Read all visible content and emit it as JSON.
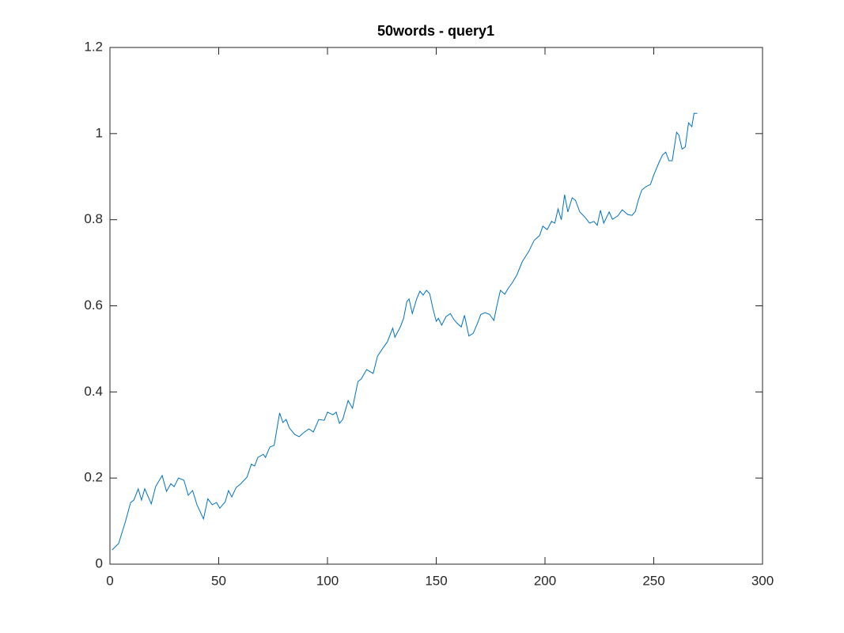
{
  "chart_data": {
    "type": "line",
    "title": "50words - query1",
    "x": [
      1,
      4,
      7,
      9.5,
      11,
      13,
      14.5,
      16,
      19,
      21,
      24,
      26,
      28,
      29.5,
      31.5,
      34,
      36,
      38,
      40,
      43,
      45,
      47,
      49,
      50.5,
      53,
      54.5,
      56,
      58,
      60,
      63,
      65,
      66.5,
      68,
      70.5,
      71.5,
      73.5,
      75.5,
      78,
      79.5,
      81,
      82.5,
      85,
      87,
      88.5,
      90,
      91.5,
      93.5,
      96,
      98.5,
      100,
      102.5,
      104,
      105.5,
      107,
      109.5,
      111.5,
      114,
      115.5,
      118,
      121,
      123,
      125.5,
      127.5,
      130,
      131,
      133.5,
      135,
      136.5,
      137.5,
      139,
      141,
      142.5,
      144,
      145.5,
      147,
      148.5,
      150,
      151,
      152.5,
      154.5,
      156.5,
      158,
      159.5,
      161.5,
      163,
      165,
      167,
      169,
      170.5,
      172.5,
      174.5,
      176.5,
      178,
      179.5,
      181.5,
      183,
      185,
      187,
      189.5,
      192.5,
      195,
      197.5,
      199,
      201,
      203,
      204.5,
      206,
      207.5,
      209,
      210.5,
      212.5,
      214,
      216,
      218.5,
      220.5,
      222.5,
      224,
      225.5,
      227,
      229.5,
      231,
      233.5,
      235.5,
      238,
      240,
      241.5,
      243,
      244.5,
      246.5,
      248.5,
      250,
      252.5,
      254,
      255.5,
      257,
      258.5,
      260.5,
      261.5,
      263,
      264.5,
      266,
      267.5,
      268.5,
      270
    ],
    "series": [
      {
        "name": "query1",
        "color": "#0072bd",
        "values": [
          0.033,
          0.048,
          0.097,
          0.143,
          0.149,
          0.175,
          0.149,
          0.175,
          0.14,
          0.18,
          0.206,
          0.169,
          0.187,
          0.18,
          0.2,
          0.195,
          0.16,
          0.171,
          0.138,
          0.105,
          0.152,
          0.138,
          0.143,
          0.13,
          0.145,
          0.171,
          0.156,
          0.178,
          0.186,
          0.202,
          0.232,
          0.228,
          0.248,
          0.255,
          0.248,
          0.272,
          0.276,
          0.351,
          0.329,
          0.336,
          0.316,
          0.301,
          0.296,
          0.303,
          0.309,
          0.314,
          0.307,
          0.336,
          0.334,
          0.353,
          0.347,
          0.353,
          0.327,
          0.336,
          0.38,
          0.362,
          0.424,
          0.43,
          0.452,
          0.443,
          0.483,
          0.502,
          0.516,
          0.548,
          0.527,
          0.551,
          0.571,
          0.61,
          0.616,
          0.582,
          0.616,
          0.634,
          0.625,
          0.636,
          0.628,
          0.593,
          0.564,
          0.571,
          0.555,
          0.575,
          0.582,
          0.569,
          0.56,
          0.551,
          0.578,
          0.53,
          0.536,
          0.56,
          0.58,
          0.584,
          0.58,
          0.566,
          0.603,
          0.636,
          0.627,
          0.64,
          0.654,
          0.671,
          0.702,
          0.726,
          0.752,
          0.763,
          0.785,
          0.777,
          0.796,
          0.792,
          0.825,
          0.8,
          0.858,
          0.818,
          0.851,
          0.845,
          0.818,
          0.805,
          0.792,
          0.796,
          0.787,
          0.822,
          0.792,
          0.818,
          0.801,
          0.809,
          0.823,
          0.812,
          0.81,
          0.819,
          0.847,
          0.869,
          0.877,
          0.882,
          0.904,
          0.934,
          0.95,
          0.957,
          0.937,
          0.937,
          1.003,
          0.997,
          0.964,
          0.969,
          1.025,
          1.016,
          1.047,
          1.047
        ]
      }
    ],
    "xlim": [
      0,
      300
    ],
    "xticks": [
      0,
      50,
      100,
      150,
      200,
      250,
      300
    ],
    "ylim": [
      0,
      1.2
    ],
    "yticks": [
      0,
      0.2,
      0.4,
      0.6,
      0.8,
      1,
      1.2
    ],
    "grid": false
  }
}
